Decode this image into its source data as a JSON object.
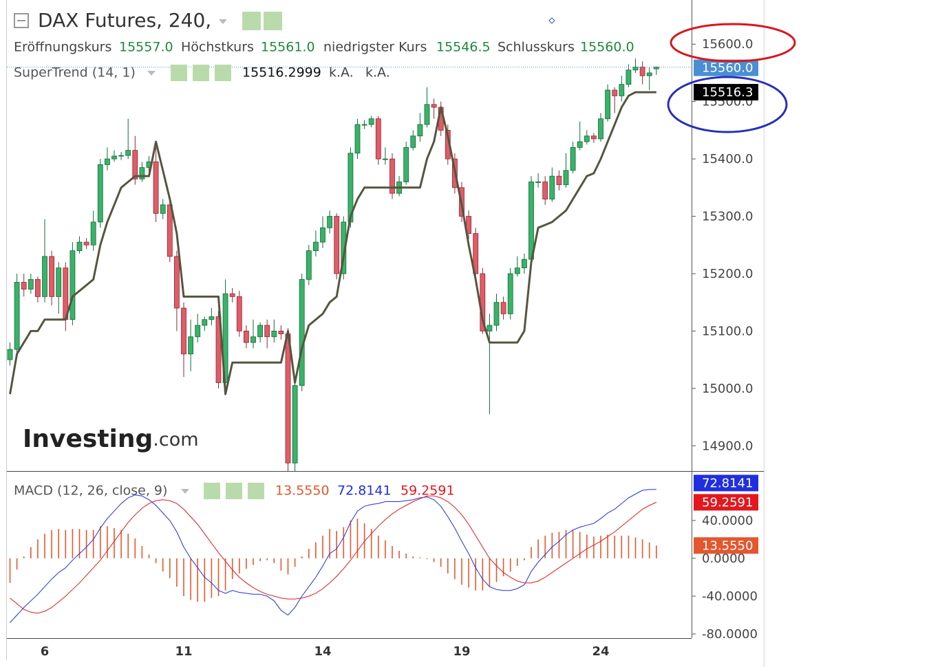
{
  "chart_data": [
    {
      "type": "candlestick",
      "title": "DAX Futures, 240,",
      "ohlc_labels": [
        "Eröffnungskurs",
        "Höchstkurs",
        "niedrigster Kurs",
        "Schlusskurs"
      ],
      "ohlc_values": [
        "15557.0",
        "15561.0",
        "15546.5",
        "15560.0"
      ],
      "watermark": [
        "Investing",
        ".com"
      ],
      "up_color": "#3ab26a",
      "down_color": "#e05c68",
      "categories": [
        null,
        null,
        null,
        null,
        null,
        "6",
        null,
        null,
        null,
        null,
        null,
        null,
        null,
        null,
        null,
        null,
        null,
        null,
        null,
        null,
        null,
        null,
        null,
        null,
        null,
        "11",
        null,
        null,
        null,
        null,
        null,
        null,
        null,
        null,
        null,
        null,
        null,
        null,
        null,
        null,
        null,
        null,
        null,
        null,
        null,
        "14",
        null,
        null,
        null,
        null,
        null,
        null,
        null,
        null,
        null,
        null,
        null,
        null,
        null,
        null,
        null,
        null,
        null,
        null,
        null,
        "19",
        null,
        null,
        null,
        null,
        null,
        null,
        null,
        null,
        null,
        null,
        null,
        null,
        null,
        null,
        null,
        null,
        null,
        null,
        null,
        "24",
        null,
        null,
        null,
        null,
        null,
        null,
        null,
        null
      ],
      "open": [
        15050,
        15068,
        15185,
        15173,
        15190,
        15160,
        15230,
        15160,
        15210,
        15120,
        15240,
        15255,
        15250,
        15290,
        15390,
        15400,
        15405,
        15406,
        15415,
        15365,
        15385,
        15395,
        15305,
        15320,
        15230,
        15140,
        15060,
        15090,
        15110,
        15120,
        15125,
        15010,
        15165,
        15160,
        15100,
        15080,
        15090,
        15110,
        15090,
        15100,
        15095,
        14870,
        15005,
        15190,
        15240,
        15255,
        15280,
        15300,
        15200,
        15290,
        15410,
        15460,
        15460,
        15470,
        15400,
        15400,
        15340,
        15360,
        15420,
        15440,
        15460,
        15495,
        15490,
        15450,
        15400,
        15350,
        15300,
        15270,
        15200,
        15100,
        15110,
        15150,
        15130,
        15200,
        15210,
        15225,
        15360,
        15360,
        15330,
        15370,
        15355,
        15380,
        15420,
        15430,
        15440,
        15435,
        15470,
        15520,
        15510,
        15530,
        15555,
        15560,
        15545,
        15557
      ],
      "high": [
        15080,
        15200,
        15200,
        15200,
        15195,
        15295,
        15240,
        15220,
        15220,
        15255,
        15265,
        15262,
        15310,
        15400,
        15420,
        15415,
        15412,
        15470,
        15440,
        15395,
        15405,
        15420,
        15330,
        15330,
        15240,
        15150,
        15120,
        15130,
        15125,
        15140,
        15135,
        15190,
        15175,
        15170,
        15110,
        15120,
        15115,
        15120,
        15120,
        15110,
        15105,
        15020,
        15200,
        15250,
        15275,
        15300,
        15310,
        15305,
        15300,
        15420,
        15470,
        15468,
        15475,
        15475,
        15420,
        15410,
        15370,
        15430,
        15450,
        15480,
        15525,
        15505,
        15500,
        15460,
        15410,
        15360,
        15310,
        15280,
        15210,
        15130,
        15165,
        15160,
        15210,
        15230,
        15235,
        15370,
        15375,
        15370,
        15385,
        15380,
        15410,
        15430,
        15465,
        15450,
        15445,
        15480,
        15530,
        15525,
        15545,
        15565,
        15575,
        15570,
        15560,
        15561
      ],
      "low": [
        15040,
        15060,
        15160,
        15165,
        15150,
        15150,
        15145,
        15130,
        15100,
        15110,
        15235,
        15243,
        15240,
        15280,
        15380,
        15395,
        15398,
        15400,
        15355,
        15360,
        15370,
        15290,
        15295,
        15220,
        15100,
        15020,
        15030,
        15080,
        15100,
        15110,
        15000,
        15000,
        15150,
        15090,
        15070,
        15070,
        15080,
        15070,
        15080,
        15085,
        14850,
        14850,
        14995,
        15180,
        15230,
        15245,
        15270,
        15190,
        15190,
        15280,
        15400,
        15452,
        15455,
        15390,
        15390,
        15330,
        15335,
        15355,
        15415,
        15430,
        15455,
        15470,
        15440,
        15390,
        15340,
        15290,
        15260,
        15190,
        15095,
        14955,
        15100,
        15120,
        15120,
        15195,
        15200,
        15215,
        15350,
        15320,
        15325,
        15345,
        15350,
        15375,
        15415,
        15425,
        15428,
        15430,
        15465,
        15480,
        15500,
        15525,
        15550,
        15530,
        15520,
        15546.5
      ],
      "close": [
        15068,
        15185,
        15173,
        15190,
        15160,
        15230,
        15160,
        15210,
        15120,
        15240,
        15255,
        15250,
        15290,
        15390,
        15400,
        15405,
        15406,
        15415,
        15365,
        15385,
        15395,
        15305,
        15320,
        15230,
        15140,
        15060,
        15090,
        15110,
        15120,
        15125,
        15010,
        15165,
        15160,
        15100,
        15080,
        15090,
        15110,
        15090,
        15100,
        15095,
        14870,
        15005,
        15190,
        15240,
        15255,
        15280,
        15300,
        15200,
        15290,
        15410,
        15460,
        15460,
        15470,
        15400,
        15400,
        15340,
        15360,
        15420,
        15440,
        15460,
        15495,
        15490,
        15450,
        15400,
        15350,
        15300,
        15270,
        15200,
        15100,
        15110,
        15150,
        15130,
        15200,
        15210,
        15225,
        15360,
        15360,
        15330,
        15370,
        15355,
        15380,
        15420,
        15430,
        15440,
        15435,
        15470,
        15520,
        15510,
        15530,
        15555,
        15560,
        15545,
        15550,
        15560
      ],
      "series": [
        {
          "name": "SuperTrend (14, 1)",
          "color": "#55553f",
          "value_label": "15516.3",
          "legend_values": [
            "15516.2999",
            "k.A.",
            "k.A."
          ],
          "values": [
            14990,
            15060,
            15080,
            15100,
            15100,
            15120,
            15120,
            15120,
            15120,
            15160,
            15170,
            15180,
            15190,
            15250,
            15290,
            15320,
            15350,
            15360,
            15370,
            15370,
            15370,
            15430,
            15380,
            15330,
            15270,
            15160,
            15160,
            15160,
            15160,
            15160,
            15160,
            14990,
            15045,
            15045,
            15045,
            15045,
            15045,
            15045,
            15045,
            15045,
            15100,
            15010,
            15070,
            15110,
            15120,
            15130,
            15150,
            15160,
            15230,
            15300,
            15330,
            15350,
            15350,
            15350,
            15350,
            15350,
            15350,
            15350,
            15350,
            15350,
            15400,
            15430,
            15490,
            15440,
            15380,
            15320,
            15250,
            15190,
            15120,
            15080,
            15080,
            15080,
            15080,
            15080,
            15100,
            15220,
            15280,
            15285,
            15290,
            15300,
            15310,
            15330,
            15350,
            15370,
            15375,
            15400,
            15430,
            15460,
            15490,
            15510,
            15516.3,
            15516.3,
            15516.3,
            15516.3
          ]
        }
      ],
      "last_color": "#4a8fd4",
      "ylim": [
        14856,
        15677
      ],
      "yticks": [
        {
          "value": 14900,
          "label": "14900.0"
        },
        {
          "value": 15000,
          "label": "15000.0"
        },
        {
          "value": 15100,
          "label": "15100.0"
        },
        {
          "value": 15200,
          "label": "15200.0"
        },
        {
          "value": 15300,
          "label": "15300.0"
        },
        {
          "value": 15400,
          "label": "15400.0"
        },
        {
          "value": 15500,
          "label": "15500.0"
        },
        {
          "value": 15600,
          "label": "15600.0"
        }
      ]
    },
    {
      "type": "macd",
      "title": "MACD (12, 26, close, 9)",
      "ylim": [
        -84.4,
        91.6
      ],
      "yticks": [
        {
          "value": -80,
          "label": "-80.0000"
        },
        {
          "value": -40,
          "label": "-40.0000"
        },
        {
          "value": 0,
          "label": "0.0000"
        },
        {
          "value": 40,
          "label": "40.0000"
        }
      ],
      "series": [
        {
          "type": "histogram",
          "color": "#e4572e",
          "value_label": "13.5550",
          "values": [
            -26,
            -12,
            2,
            12,
            20,
            26,
            30,
            31,
            30,
            31,
            31,
            30,
            30,
            34,
            34,
            32,
            30,
            26,
            21,
            13,
            4,
            -5,
            -14,
            -21,
            -30,
            -40,
            -44,
            -46,
            -46,
            -42,
            -40,
            -34,
            -22,
            -16,
            -11,
            -7,
            -3,
            -2,
            -5,
            -13,
            -17,
            -9,
            2,
            10,
            17,
            24,
            31,
            29,
            33,
            40,
            42,
            37,
            31,
            24,
            19,
            13,
            8,
            5,
            2,
            1,
            -1,
            -4,
            -9,
            -16,
            -22,
            -28,
            -31,
            -34,
            -34,
            -30,
            -25,
            -19,
            -14,
            -8,
            -2,
            12,
            20,
            24,
            27,
            28,
            30,
            30,
            28,
            25,
            23,
            24,
            25,
            24,
            24,
            24,
            22,
            20,
            16.8,
            13.555
          ]
        },
        {
          "type": "line",
          "color": "#1f2fe0",
          "value_label": "72.8141",
          "values": [
            -68,
            -60,
            -52,
            -45,
            -38,
            -30,
            -22,
            -15,
            -10,
            -2,
            5,
            12,
            20,
            32,
            42,
            50,
            58,
            64,
            67,
            66,
            62,
            56,
            48,
            40,
            28,
            12,
            0,
            -10,
            -20,
            -26,
            -34,
            -37,
            -34,
            -36,
            -37,
            -38,
            -38,
            -40,
            -45,
            -55,
            -60,
            -52,
            -40,
            -30,
            -20,
            -8,
            5,
            10,
            22,
            38,
            50,
            55,
            57,
            58,
            60,
            60,
            60,
            61,
            62,
            64,
            65,
            62,
            55,
            44,
            32,
            18,
            5,
            -10,
            -22,
            -30,
            -33,
            -34,
            -34,
            -32,
            -28,
            -14,
            -4,
            4,
            12,
            18,
            25,
            30,
            33,
            35,
            37,
            42,
            48,
            52,
            58,
            64,
            68,
            72,
            72.8,
            72.8141
          ]
        },
        {
          "type": "line",
          "color": "#e3181f",
          "value_label": "59.2591",
          "values": [
            -42,
            -48,
            -54,
            -57,
            -58,
            -56,
            -52,
            -46,
            -40,
            -33,
            -26,
            -18,
            -10,
            -2,
            8,
            18,
            28,
            38,
            46,
            53,
            58,
            61,
            62,
            61,
            58,
            52,
            44,
            36,
            26,
            16,
            6,
            -3,
            -12,
            -20,
            -26,
            -31,
            -35,
            -38,
            -40,
            -42,
            -43,
            -43,
            -42,
            -40,
            -37,
            -32,
            -26,
            -19,
            -11,
            -2,
            8,
            18,
            26,
            34,
            41,
            47,
            52,
            56,
            60,
            63,
            66,
            66,
            64,
            60,
            54,
            46,
            36,
            24,
            12,
            0,
            -8,
            -15,
            -20,
            -24,
            -26,
            -26,
            -24,
            -20,
            -15,
            -10,
            -5,
            0,
            5,
            10,
            14,
            18,
            23,
            28,
            34,
            40,
            46,
            52,
            56,
            59.2591
          ]
        }
      ]
    }
  ]
}
